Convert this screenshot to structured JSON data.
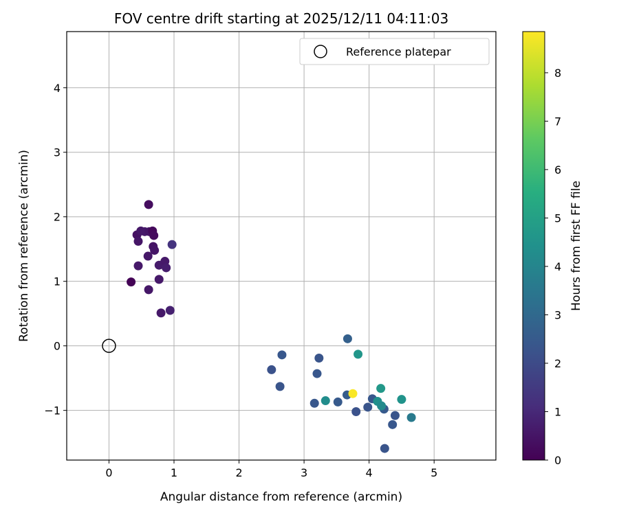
{
  "chart_data": {
    "type": "scatter",
    "title": "FOV centre drift starting at 2025/12/11 04:11:03",
    "xlabel": "Angular distance from reference (arcmin)",
    "ylabel": "Rotation from reference (arcmin)",
    "xlim": [
      -0.65,
      5.95
    ],
    "ylim": [
      -1.77,
      4.87
    ],
    "xticks": [
      0,
      1,
      2,
      3,
      4,
      5
    ],
    "yticks": [
      -1,
      0,
      1,
      2,
      3,
      4
    ],
    "xtick_labels": [
      "0",
      "1",
      "2",
      "3",
      "4",
      "5"
    ],
    "ytick_labels": [
      "−1",
      "0",
      "1",
      "2",
      "3",
      "4"
    ],
    "grid": true,
    "legend": {
      "label": "Reference platepar",
      "position": "top-right"
    },
    "reference": {
      "x": 0,
      "y": 0
    },
    "colorbar": {
      "label": "Hours from first FF file",
      "range": [
        0,
        8.85
      ],
      "ticks": [
        0,
        1,
        2,
        3,
        4,
        5,
        6,
        7,
        8
      ],
      "tick_labels": [
        "0",
        "1",
        "2",
        "3",
        "4",
        "5",
        "6",
        "7",
        "8"
      ],
      "colormap": "viridis"
    },
    "series": [
      {
        "points": [
          {
            "x": 0.34,
            "y": 0.99,
            "h": 0.05
          },
          {
            "x": 0.61,
            "y": 2.19,
            "h": 0.3
          },
          {
            "x": 0.43,
            "y": 1.72,
            "h": 0.4
          },
          {
            "x": 0.45,
            "y": 1.62,
            "h": 0.5
          },
          {
            "x": 0.49,
            "y": 1.78,
            "h": 0.55
          },
          {
            "x": 0.55,
            "y": 1.77,
            "h": 0.6
          },
          {
            "x": 0.62,
            "y": 1.77,
            "h": 0.5
          },
          {
            "x": 0.67,
            "y": 1.78,
            "h": 0.2
          },
          {
            "x": 0.69,
            "y": 1.71,
            "h": 0.25
          },
          {
            "x": 0.68,
            "y": 1.54,
            "h": 0.45
          },
          {
            "x": 0.7,
            "y": 1.48,
            "h": 0.5
          },
          {
            "x": 0.6,
            "y": 1.39,
            "h": 0.55
          },
          {
            "x": 0.45,
            "y": 1.24,
            "h": 0.6
          },
          {
            "x": 0.77,
            "y": 1.25,
            "h": 0.65
          },
          {
            "x": 0.86,
            "y": 1.31,
            "h": 0.6
          },
          {
            "x": 0.88,
            "y": 1.21,
            "h": 0.7
          },
          {
            "x": 0.77,
            "y": 1.03,
            "h": 0.6
          },
          {
            "x": 0.61,
            "y": 0.87,
            "h": 0.55
          },
          {
            "x": 0.8,
            "y": 0.51,
            "h": 0.6
          },
          {
            "x": 0.94,
            "y": 0.55,
            "h": 0.8
          },
          {
            "x": 0.97,
            "y": 1.57,
            "h": 1.3
          },
          {
            "x": 2.5,
            "y": -0.37,
            "h": 2.2
          },
          {
            "x": 2.66,
            "y": -0.14,
            "h": 2.4
          },
          {
            "x": 2.63,
            "y": -0.63,
            "h": 2.3
          },
          {
            "x": 3.2,
            "y": -0.43,
            "h": 2.4
          },
          {
            "x": 3.23,
            "y": -0.19,
            "h": 2.3
          },
          {
            "x": 3.16,
            "y": -0.89,
            "h": 2.4
          },
          {
            "x": 3.52,
            "y": -0.87,
            "h": 2.5
          },
          {
            "x": 3.66,
            "y": -0.76,
            "h": 2.6
          },
          {
            "x": 3.67,
            "y": 0.11,
            "h": 2.7
          },
          {
            "x": 3.8,
            "y": -1.02,
            "h": 2.2
          },
          {
            "x": 3.98,
            "y": -0.95,
            "h": 2.3
          },
          {
            "x": 4.05,
            "y": -0.82,
            "h": 2.4
          },
          {
            "x": 4.23,
            "y": -0.98,
            "h": 2.5
          },
          {
            "x": 4.4,
            "y": -1.08,
            "h": 2.3
          },
          {
            "x": 4.36,
            "y": -1.22,
            "h": 2.4
          },
          {
            "x": 4.24,
            "y": -1.59,
            "h": 2.3
          },
          {
            "x": 3.33,
            "y": -0.85,
            "h": 4.3
          },
          {
            "x": 3.83,
            "y": -0.13,
            "h": 4.6
          },
          {
            "x": 4.13,
            "y": -0.86,
            "h": 4.4
          },
          {
            "x": 4.18,
            "y": -0.66,
            "h": 4.7
          },
          {
            "x": 4.19,
            "y": -0.93,
            "h": 4.2
          },
          {
            "x": 4.5,
            "y": -0.83,
            "h": 4.5
          },
          {
            "x": 4.65,
            "y": -1.11,
            "h": 3.6
          },
          {
            "x": 3.75,
            "y": -0.74,
            "h": 8.8
          }
        ]
      }
    ]
  }
}
